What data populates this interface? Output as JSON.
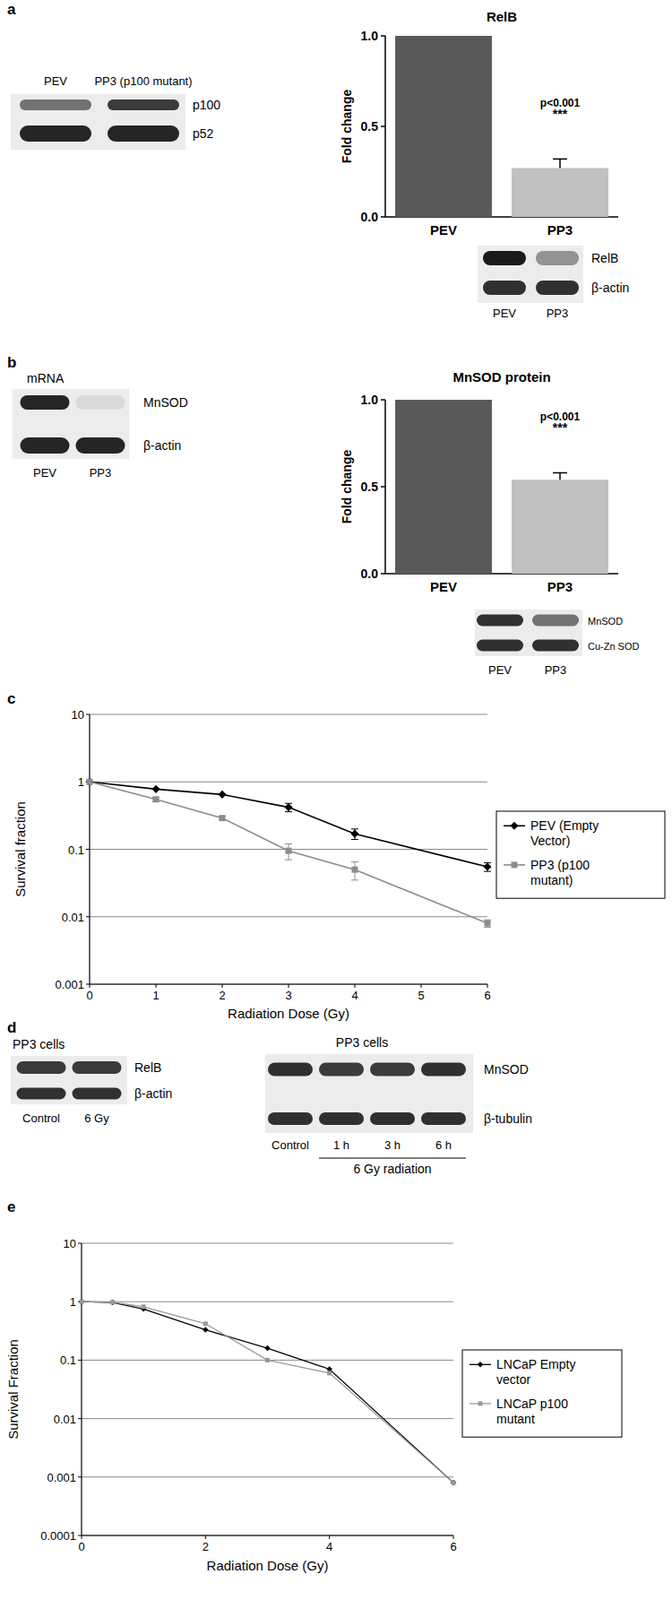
{
  "panel_labels": [
    "a",
    "b",
    "c",
    "d",
    "e"
  ],
  "chart_data": [
    {
      "type": "bar",
      "title": "RelB",
      "y_label": "Fold change",
      "categories": [
        "PEV",
        "PP3"
      ],
      "values": [
        1.0,
        0.27
      ],
      "errors": [
        null,
        0.05
      ],
      "colors": [
        "#595959",
        "#c0c0c0"
      ],
      "ylim": [
        0,
        1
      ],
      "yticks": [
        {
          "value": 0,
          "label": "0.0"
        },
        {
          "value": 0.5,
          "label": "0.5"
        },
        {
          "value": 1,
          "label": "1.0"
        }
      ],
      "annotations": [
        "p<0.001",
        "***"
      ]
    },
    {
      "type": "bar",
      "title": "MnSOD protein",
      "y_label": "Fold change",
      "categories": [
        "PEV",
        "PP3"
      ],
      "values": [
        1.0,
        0.54
      ],
      "errors": [
        null,
        0.04
      ],
      "colors": [
        "#595959",
        "#c0c0c0"
      ],
      "ylim": [
        0,
        1
      ],
      "yticks": [
        {
          "value": 0,
          "label": "0.0"
        },
        {
          "value": 0.5,
          "label": "0.5"
        },
        {
          "value": 1,
          "label": "1.0"
        }
      ],
      "annotations": [
        "p<0.001",
        "***"
      ]
    },
    {
      "type": "line",
      "x_label": "Radiation Dose (Gy)",
      "y_label": "Survival fraction",
      "x": [
        0,
        1,
        2,
        3,
        4,
        6
      ],
      "series": [
        {
          "name": "PEV (Empty Vector)",
          "color": "#000000",
          "marker": "diamond",
          "line_style": "solid",
          "values": [
            1,
            0.78,
            0.65,
            0.42,
            0.17,
            0.055
          ],
          "errors": [
            null,
            null,
            null,
            0.06,
            0.03,
            0.008
          ]
        },
        {
          "name": "PP3 (p100 mutant)",
          "color": "#8c8c8c",
          "marker": "square",
          "line_style": "solid",
          "values": [
            1,
            0.55,
            0.29,
            0.095,
            0.05,
            0.008
          ],
          "errors": [
            null,
            0.04,
            0.02,
            0.025,
            0.015,
            0.001
          ]
        }
      ],
      "xlim": [
        0,
        6
      ],
      "ylim": [
        0.001,
        10
      ],
      "xticks": [
        0,
        1,
        2,
        3,
        4,
        5,
        6
      ],
      "yticks": [
        0.001,
        0.01,
        0.1,
        1,
        10
      ],
      "log": "y",
      "grid": true,
      "legend": "right"
    },
    {
      "type": "line",
      "x_label": "Radiation Dose (Gy)",
      "y_label": "Survival Fraction",
      "x": [
        0,
        0.5,
        1,
        2,
        3,
        4,
        6
      ],
      "series": [
        {
          "name": "LNCaP Empty vector",
          "color": "#000000",
          "marker": "diamond",
          "line_style": "solid",
          "values": [
            1,
            0.97,
            0.75,
            0.33,
            0.16,
            0.07,
            0.0008
          ]
        },
        {
          "name": "LNCaP p100 mutant",
          "color": "#999999",
          "marker": "square",
          "line_style": "solid",
          "values": [
            1,
            0.98,
            0.82,
            0.42,
            0.1,
            0.06,
            0.0008
          ]
        }
      ],
      "xlim": [
        0,
        6
      ],
      "ylim": [
        0.0001,
        10
      ],
      "xticks": [
        0,
        2,
        4,
        6
      ],
      "yticks": [
        0.0001,
        0.001,
        0.01,
        0.1,
        1,
        10
      ],
      "log": "y",
      "grid": true,
      "legend": "right"
    }
  ],
  "blots": [
    {
      "lanes": [
        "PEV",
        "PP3 (p100 mutant)"
      ],
      "rows": [
        "p100",
        "p52"
      ],
      "intensity": [
        [
          0.55,
          0.8
        ],
        [
          0.9,
          0.9
        ]
      ]
    },
    {
      "lanes": [
        "PEV",
        "PP3"
      ],
      "rows": [
        "RelB",
        "β-actin"
      ],
      "intensity": [
        [
          0.95,
          0.4
        ],
        [
          0.85,
          0.85
        ]
      ]
    },
    {
      "caption": "mRNA",
      "lanes": [
        "PEV",
        "PP3"
      ],
      "rows": [
        "MnSOD",
        "β-actin"
      ],
      "intensity": [
        [
          0.9,
          0.08
        ],
        [
          0.9,
          0.9
        ]
      ]
    },
    {
      "lanes": [
        "PEV",
        "PP3"
      ],
      "rows": [
        "MnSOD",
        "Cu-Zn SOD"
      ],
      "intensity": [
        [
          0.85,
          0.55
        ],
        [
          0.85,
          0.85
        ]
      ]
    },
    {
      "caption": "PP3 cells",
      "lanes": [
        "Control",
        "6 Gy"
      ],
      "rows": [
        "RelB",
        "β-actin"
      ],
      "intensity": [
        [
          0.8,
          0.8
        ],
        [
          0.85,
          0.85
        ]
      ]
    },
    {
      "caption": "PP3 cells",
      "lanes": [
        "Control",
        "1 h",
        "3 h",
        "6 h"
      ],
      "rows": [
        "MnSOD",
        "β-tubulin"
      ],
      "intensity": [
        [
          0.85,
          0.8,
          0.8,
          0.85
        ],
        [
          0.85,
          0.85,
          0.85,
          0.85
        ]
      ],
      "group_label": "6 Gy radiation"
    }
  ]
}
